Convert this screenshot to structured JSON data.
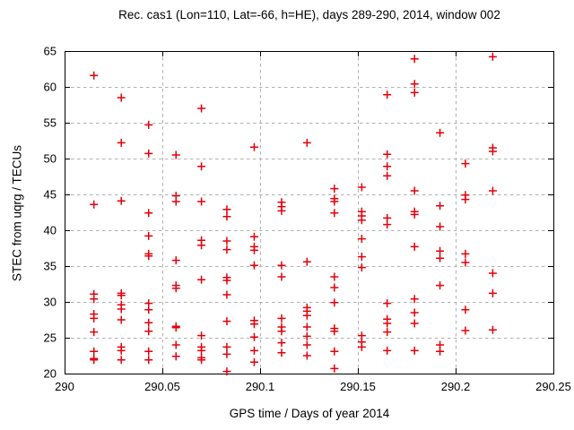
{
  "title": "Rec. cas1 (Lon=110, Lat=-66, h=HE), days 289-290, 2014, window 002",
  "chart_data": {
    "type": "scatter",
    "title": "Rec. cas1 (Lon=110, Lat=-66, h=HE), days 289-290, 2014, window 002",
    "xlabel": "GPS time / Days of year 2014",
    "ylabel": "STEC from uqrg / TECUs",
    "xlim": [
      290,
      290.25
    ],
    "ylim": [
      20,
      65
    ],
    "xtick_values": [
      290,
      290.05,
      290.1,
      290.15,
      290.2,
      290.25
    ],
    "xtick_labels": [
      "290",
      "290.05",
      "290.1",
      "290.15",
      "290.2",
      "290.25"
    ],
    "ytick_values": [
      20,
      25,
      30,
      35,
      40,
      45,
      50,
      55,
      60,
      65
    ],
    "ytick_labels": [
      "20",
      "25",
      "30",
      "35",
      "40",
      "45",
      "50",
      "55",
      "60",
      "65"
    ],
    "grid": true,
    "grid_color": "#b0b0b0",
    "border_color": "#000000",
    "legend_position": "none",
    "marker": "plus",
    "marker_color": "#e3000b",
    "points_by_epoch": [
      {
        "x": 290.015,
        "stec_values": [
          61.6,
          43.6,
          31.1,
          30.4,
          28.3,
          27.7,
          25.8,
          23.1,
          22.1,
          21.9
        ]
      },
      {
        "x": 290.029,
        "stec_values": [
          58.5,
          52.2,
          44.1,
          31.2,
          30.9,
          29.6,
          29.0,
          27.5,
          23.7,
          23.2,
          21.9
        ]
      },
      {
        "x": 290.043,
        "stec_values": [
          54.7,
          50.7,
          42.4,
          39.2,
          36.7,
          36.4,
          29.8,
          28.9,
          27.1,
          25.9,
          23.1,
          21.9
        ]
      },
      {
        "x": 290.057,
        "stec_values": [
          50.5,
          44.8,
          44.0,
          35.8,
          32.3,
          31.9,
          26.6,
          26.4,
          24.0,
          22.4
        ]
      },
      {
        "x": 290.07,
        "stec_values": [
          57.0,
          48.9,
          44.0,
          38.6,
          37.9,
          33.1,
          25.3,
          23.7,
          23.2,
          22.2,
          21.9
        ]
      },
      {
        "x": 290.083,
        "stec_values": [
          42.9,
          41.9,
          38.5,
          37.3,
          33.4,
          33.0,
          31.0,
          27.3,
          23.7,
          22.7,
          20.3
        ]
      },
      {
        "x": 290.097,
        "stec_values": [
          51.6,
          39.1,
          37.7,
          37.2,
          35.1,
          27.4,
          26.9,
          25.1,
          23.2,
          21.6
        ]
      },
      {
        "x": 290.111,
        "stec_values": [
          43.9,
          43.3,
          42.7,
          35.1,
          33.5,
          27.7,
          26.5,
          25.9,
          24.3,
          22.9
        ]
      },
      {
        "x": 290.124,
        "stec_values": [
          52.2,
          35.6,
          29.2,
          28.7,
          28.1,
          26.5,
          25.2,
          24.0,
          22.5
        ]
      },
      {
        "x": 290.138,
        "stec_values": [
          45.8,
          44.4,
          44.0,
          42.4,
          33.5,
          32.0,
          29.9,
          26.3,
          25.9,
          23.1,
          20.7
        ]
      },
      {
        "x": 290.152,
        "stec_values": [
          46.0,
          42.6,
          42.0,
          41.4,
          38.8,
          36.3,
          34.8,
          25.3,
          24.4,
          23.7
        ]
      },
      {
        "x": 290.165,
        "stec_values": [
          58.9,
          50.6,
          48.9,
          47.6,
          41.7,
          40.8,
          29.8,
          27.6,
          27.0,
          25.8,
          23.2
        ]
      },
      {
        "x": 290.179,
        "stec_values": [
          63.9,
          60.4,
          59.2,
          45.5,
          42.6,
          42.2,
          37.7,
          30.4,
          28.5,
          27.0,
          23.2
        ]
      },
      {
        "x": 290.192,
        "stec_values": [
          53.6,
          43.4,
          40.5,
          37.1,
          36.1,
          32.3,
          24.0,
          23.1
        ]
      },
      {
        "x": 290.205,
        "stec_values": [
          49.3,
          44.9,
          44.3,
          36.7,
          35.5,
          28.9,
          26.0
        ]
      },
      {
        "x": 290.219,
        "stec_values": [
          64.2,
          51.5,
          51.0,
          45.5,
          34.0,
          31.2,
          26.1
        ]
      }
    ]
  }
}
